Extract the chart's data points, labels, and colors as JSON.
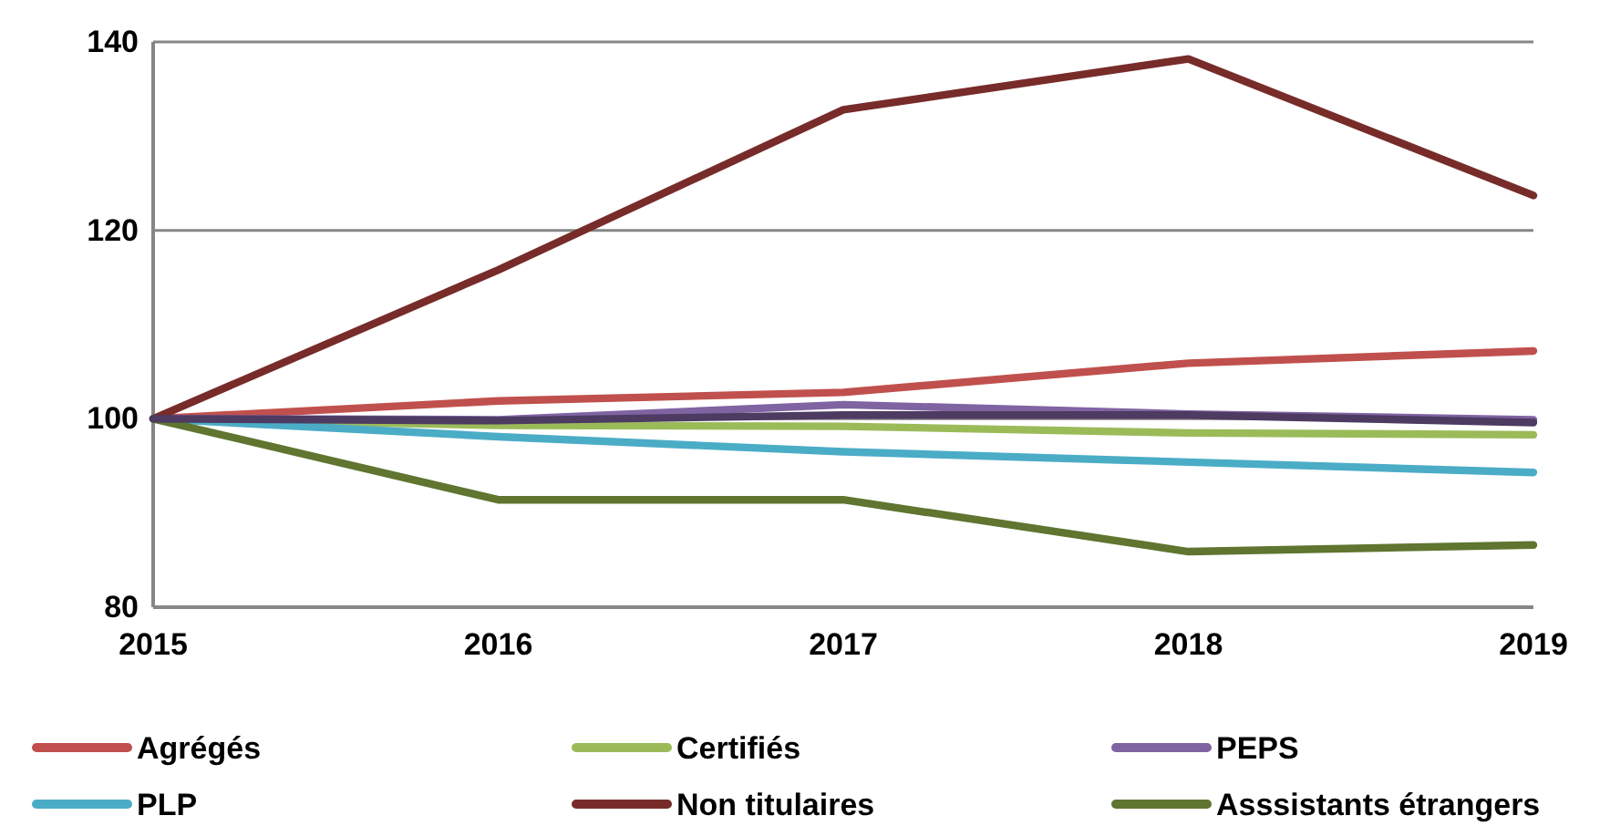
{
  "chart_data": {
    "type": "line",
    "x": [
      2015,
      2016,
      2017,
      2018,
      2019
    ],
    "xlim": [
      2015,
      2019
    ],
    "xticks": [
      2015,
      2016,
      2017,
      2018,
      2019
    ],
    "ylim": [
      80,
      140
    ],
    "yticks": [
      80,
      100,
      120,
      140
    ],
    "grid": "y",
    "legend": "bottom",
    "line_style": "solid",
    "marker": "none",
    "series": [
      {
        "name": "Agrégés",
        "color": "#c0504d",
        "values": [
          100,
          101.9,
          102.8,
          105.9,
          107.2
        ]
      },
      {
        "name": "Certifiés",
        "color": "#9bbb59",
        "values": [
          100,
          99.3,
          99.2,
          98.5,
          98.3
        ]
      },
      {
        "name": "PEPS",
        "color": "#8064a2",
        "values": [
          100,
          99.9,
          101.5,
          100.5,
          99.9
        ]
      },
      {
        "name": "PLP",
        "color": "#4bacc6",
        "values": [
          100,
          98.1,
          96.5,
          95.4,
          94.3
        ]
      },
      {
        "name": "Non titulaires",
        "color": "#772c2a",
        "values": [
          100,
          115.8,
          132.8,
          138.2,
          123.7
        ]
      },
      {
        "name": "Asssistants étrangers",
        "color": "#5f7530",
        "values": [
          100,
          91.4,
          91.4,
          85.9,
          86.6
        ]
      },
      {
        "color": "#4d3b62",
        "values": [
          100,
          99.8,
          100.4,
          100.4,
          99.6
        ]
      }
    ]
  }
}
